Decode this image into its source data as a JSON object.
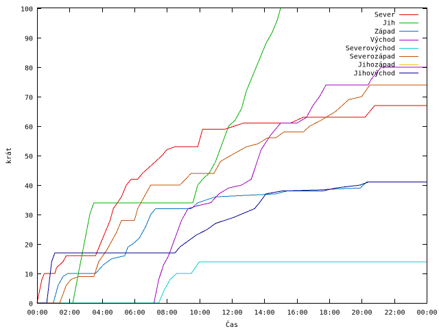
{
  "chart_data": {
    "type": "line",
    "xlabel": "Čas",
    "ylabel": "krát",
    "xlim": [
      0,
      24
    ],
    "ylim": [
      0,
      100
    ],
    "x_ticks": [
      "00:00",
      "02:00",
      "04:00",
      "06:00",
      "08:00",
      "10:00",
      "12:00",
      "14:00",
      "16:00",
      "18:00",
      "20:00",
      "22:00",
      "00:00"
    ],
    "y_ticks": [
      "0",
      "10",
      "20",
      "30",
      "40",
      "50",
      "60",
      "70",
      "80",
      "90",
      "100"
    ],
    "grid": false,
    "legend_position": "top-right",
    "series": [
      {
        "name": "Sever",
        "color": "#e00000",
        "points": [
          [
            0,
            0
          ],
          [
            0.3,
            8
          ],
          [
            0.45,
            10
          ],
          [
            1.1,
            10
          ],
          [
            1.2,
            12
          ],
          [
            1.6,
            14
          ],
          [
            1.8,
            16
          ],
          [
            3.6,
            16
          ],
          [
            3.9,
            20
          ],
          [
            4.2,
            24
          ],
          [
            4.5,
            28
          ],
          [
            4.7,
            32
          ],
          [
            4.95,
            34
          ],
          [
            5.2,
            36
          ],
          [
            5.5,
            40
          ],
          [
            5.8,
            42
          ],
          [
            6.2,
            42
          ],
          [
            6.5,
            44
          ],
          [
            6.9,
            46
          ],
          [
            7.3,
            48
          ],
          [
            7.7,
            50
          ],
          [
            8.0,
            52
          ],
          [
            8.5,
            53
          ],
          [
            9.9,
            53
          ],
          [
            10.2,
            59
          ],
          [
            11.6,
            59
          ],
          [
            12.7,
            61
          ],
          [
            15.0,
            61
          ],
          [
            15.6,
            61
          ],
          [
            16.4,
            63
          ],
          [
            20.2,
            63
          ],
          [
            20.5,
            65
          ],
          [
            20.8,
            67
          ],
          [
            24,
            67
          ]
        ]
      },
      {
        "name": "Jih",
        "color": "#00b000",
        "points": [
          [
            0,
            0
          ],
          [
            2.2,
            0
          ],
          [
            2.55,
            10
          ],
          [
            2.9,
            20
          ],
          [
            3.25,
            30
          ],
          [
            3.5,
            34
          ],
          [
            9.6,
            34
          ],
          [
            9.9,
            40
          ],
          [
            10.2,
            42
          ],
          [
            10.6,
            44
          ],
          [
            11.0,
            48
          ],
          [
            11.4,
            54
          ],
          [
            11.8,
            60
          ],
          [
            12.2,
            62
          ],
          [
            12.6,
            66
          ],
          [
            12.9,
            72
          ],
          [
            13.2,
            76
          ],
          [
            13.5,
            80
          ],
          [
            13.8,
            84
          ],
          [
            14.1,
            88
          ],
          [
            14.5,
            92
          ],
          [
            14.8,
            96
          ],
          [
            15.0,
            100
          ]
        ]
      },
      {
        "name": "Západ",
        "color": "#0070c0",
        "points": [
          [
            0,
            0
          ],
          [
            1.0,
            0
          ],
          [
            1.3,
            6
          ],
          [
            1.6,
            9
          ],
          [
            1.9,
            10
          ],
          [
            3.6,
            10
          ],
          [
            4.1,
            13
          ],
          [
            4.6,
            15
          ],
          [
            5.4,
            16
          ],
          [
            5.6,
            19
          ],
          [
            5.9,
            20
          ],
          [
            6.3,
            22
          ],
          [
            6.7,
            26
          ],
          [
            7.0,
            30
          ],
          [
            7.3,
            32
          ],
          [
            9.5,
            32
          ],
          [
            9.9,
            34
          ],
          [
            11.0,
            36
          ],
          [
            14.7,
            37
          ],
          [
            15.4,
            38
          ],
          [
            19.9,
            39
          ],
          [
            20.3,
            41
          ],
          [
            24,
            41
          ]
        ]
      },
      {
        "name": "Východ",
        "color": "#a000c0",
        "points": [
          [
            0,
            0
          ],
          [
            7.2,
            0
          ],
          [
            7.5,
            8
          ],
          [
            7.8,
            13
          ],
          [
            8.1,
            16
          ],
          [
            8.5,
            22
          ],
          [
            8.9,
            28
          ],
          [
            9.3,
            32
          ],
          [
            9.9,
            33
          ],
          [
            10.7,
            34
          ],
          [
            11.2,
            37
          ],
          [
            11.8,
            39
          ],
          [
            12.6,
            40
          ],
          [
            13.2,
            42
          ],
          [
            13.8,
            52
          ],
          [
            14.4,
            57
          ],
          [
            15.0,
            61
          ],
          [
            16.0,
            61
          ],
          [
            16.6,
            63
          ],
          [
            17.0,
            67
          ],
          [
            17.4,
            70
          ],
          [
            17.8,
            74
          ],
          [
            20.4,
            74
          ],
          [
            20.6,
            76
          ],
          [
            21.2,
            80
          ],
          [
            24,
            80
          ]
        ]
      },
      {
        "name": "Severovýchod",
        "color": "#00d0d0",
        "points": [
          [
            0,
            0
          ],
          [
            7.5,
            0
          ],
          [
            7.8,
            4
          ],
          [
            8.2,
            8
          ],
          [
            8.6,
            10
          ],
          [
            9.5,
            10
          ],
          [
            10.0,
            14
          ],
          [
            24,
            14
          ]
        ]
      },
      {
        "name": "Severozápad",
        "color": "#c05000",
        "points": [
          [
            0,
            0
          ],
          [
            1.4,
            0
          ],
          [
            1.8,
            6
          ],
          [
            2.1,
            8
          ],
          [
            2.6,
            9
          ],
          [
            3.5,
            9
          ],
          [
            3.8,
            14
          ],
          [
            4.3,
            18
          ],
          [
            4.9,
            24
          ],
          [
            5.2,
            28
          ],
          [
            6.0,
            28
          ],
          [
            6.2,
            32
          ],
          [
            6.6,
            36
          ],
          [
            7.0,
            40
          ],
          [
            8.8,
            40
          ],
          [
            9.5,
            44
          ],
          [
            10.9,
            44
          ],
          [
            11.3,
            48
          ],
          [
            11.6,
            49
          ],
          [
            12.9,
            53
          ],
          [
            13.6,
            54
          ],
          [
            14.2,
            56
          ],
          [
            14.7,
            56
          ],
          [
            15.2,
            58
          ],
          [
            16.4,
            58
          ],
          [
            16.8,
            60
          ],
          [
            17.5,
            62
          ],
          [
            18.4,
            65
          ],
          [
            19.2,
            69
          ],
          [
            20.0,
            70
          ],
          [
            20.5,
            74
          ],
          [
            24,
            74
          ]
        ]
      },
      {
        "name": "Jihozápad",
        "color": "#f0c000",
        "points": []
      },
      {
        "name": "Jihovýchod",
        "color": "#000090",
        "points": [
          [
            0,
            0
          ],
          [
            0.6,
            0
          ],
          [
            0.9,
            14
          ],
          [
            1.1,
            17
          ],
          [
            8.5,
            17
          ],
          [
            8.8,
            19
          ],
          [
            9.3,
            21
          ],
          [
            9.8,
            23
          ],
          [
            10.5,
            25
          ],
          [
            11.0,
            27
          ],
          [
            12.1,
            29
          ],
          [
            13.4,
            32
          ],
          [
            13.7,
            34
          ],
          [
            14.1,
            37
          ],
          [
            15.1,
            38
          ],
          [
            17.6,
            38
          ],
          [
            18.4,
            39
          ],
          [
            19.9,
            40
          ],
          [
            20.4,
            41
          ],
          [
            24,
            41
          ]
        ]
      }
    ]
  }
}
